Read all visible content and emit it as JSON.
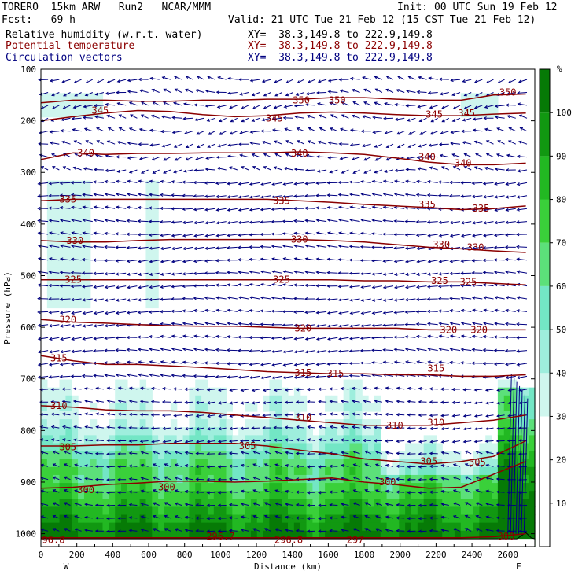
{
  "header": {
    "model": "TORERO  15km ARW   Run2   NCAR/MMM",
    "init": "Init: 00 UTC Sun 19 Feb 12",
    "fcst": "Fcst:   69 h",
    "valid": "Valid: 21 UTC Tue 21 Feb 12 (15 CST Tue 21 Feb 12)"
  },
  "fields": [
    {
      "name": "Relative humidity (w.r.t. water)",
      "xy": "XY=  38.3,149.8 to 222.9,149.8",
      "color": "#000000"
    },
    {
      "name": "Potential temperature",
      "xy": "XY=  38.3,149.8 to 222.9,149.8",
      "color": "#8b0000"
    },
    {
      "name": "Circulation vectors",
      "xy": "XY=  38.3,149.8 to 222.9,149.8",
      "color": "#000080"
    }
  ],
  "chart_data": {
    "type": "heatmap",
    "xlabel": "Distance (km)",
    "ylabel": "Pressure (hPa)",
    "xlim": [
      0,
      2750
    ],
    "ylim": [
      1025,
      100
    ],
    "x_ticks": [
      "0",
      "200",
      "400",
      "600",
      "800",
      "1000",
      "1200",
      "1400",
      "1600",
      "1800",
      "2000",
      "2200",
      "2400",
      "2600"
    ],
    "y_ticks": [
      "100",
      "200",
      "300",
      "400",
      "500",
      "600",
      "700",
      "800",
      "900",
      "1000"
    ],
    "x_end_labels": {
      "left": "W",
      "right": "E"
    },
    "colorbar": {
      "unit": "%",
      "labels": [
        "10",
        "20",
        "30",
        "40",
        "50",
        "60",
        "70",
        "80",
        "90",
        "100"
      ],
      "levels": [
        0,
        10,
        20,
        30,
        40,
        50,
        60,
        70,
        80,
        90,
        100,
        110
      ],
      "colors": [
        "#ffffff",
        "#ffffff",
        "#ffffff",
        "#cff6ee",
        "#9eeedd",
        "#73e6c5",
        "#5ce07a",
        "#3ad03a",
        "#22b822",
        "#119811",
        "#067a06"
      ]
    },
    "theta_contours": [
      {
        "level": 350,
        "p": [
          165,
          160,
          160,
          162,
          162,
          160,
          160,
          158,
          158,
          155,
          155,
          158,
          160,
          160,
          150,
          148
        ]
      },
      {
        "level": 345,
        "p": [
          200,
          192,
          185,
          180,
          182,
          188,
          192,
          190,
          185,
          183,
          185,
          188,
          190,
          190,
          187,
          185
        ]
      },
      {
        "level": 340,
        "p": [
          275,
          262,
          265,
          263,
          263,
          262,
          262,
          262,
          260,
          262,
          265,
          272,
          280,
          285,
          285,
          282
        ]
      },
      {
        "level": 335,
        "p": [
          355,
          352,
          352,
          352,
          352,
          352,
          352,
          352,
          355,
          358,
          362,
          365,
          368,
          372,
          370,
          365
        ]
      },
      {
        "level": 330,
        "p": [
          432,
          435,
          435,
          432,
          430,
          430,
          430,
          430,
          430,
          432,
          435,
          440,
          445,
          448,
          452,
          455
        ]
      },
      {
        "level": 325,
        "p": [
          508,
          508,
          508,
          508,
          508,
          508,
          508,
          508,
          508,
          508,
          510,
          510,
          512,
          512,
          515,
          518
        ]
      },
      {
        "level": 320,
        "p": [
          585,
          590,
          592,
          595,
          597,
          598,
          598,
          600,
          602,
          602,
          602,
          602,
          605,
          605,
          605,
          605
        ]
      },
      {
        "level": 315,
        "p": [
          655,
          665,
          672,
          672,
          675,
          678,
          682,
          686,
          688,
          690,
          690,
          692,
          692,
          695,
          695,
          692
        ]
      },
      {
        "level": 310,
        "p": [
          752,
          755,
          760,
          762,
          762,
          765,
          770,
          775,
          780,
          785,
          790,
          790,
          790,
          785,
          780,
          770
        ]
      },
      {
        "level": 305,
        "p": [
          830,
          830,
          828,
          828,
          825,
          825,
          825,
          830,
          838,
          845,
          855,
          860,
          865,
          860,
          850,
          820
        ]
      },
      {
        "level": 300,
        "p": [
          912,
          910,
          905,
          902,
          898,
          898,
          900,
          898,
          895,
          892,
          900,
          905,
          912,
          910,
          885,
          860
        ]
      },
      {
        "level": 297,
        "p": [
          1008,
          1008,
          1008,
          1008,
          1008,
          1008,
          1008,
          1008,
          1008,
          1008,
          1008,
          1008,
          1008,
          1008,
          1006,
          1000
        ]
      }
    ],
    "theta_x": [
      0,
      180,
      360,
      540,
      720,
      900,
      1080,
      1260,
      1440,
      1620,
      1800,
      1980,
      2160,
      2340,
      2520,
      2700
    ],
    "contour_labels": [
      {
        "t": "350",
        "x": 1450,
        "p": 160
      },
      {
        "t": "350",
        "x": 1650,
        "p": 160
      },
      {
        "t": "350",
        "x": 2600,
        "p": 145
      },
      {
        "t": "345",
        "x": 330,
        "p": 180
      },
      {
        "t": "345",
        "x": 1300,
        "p": 195
      },
      {
        "t": "345",
        "x": 2190,
        "p": 188
      },
      {
        "t": "345",
        "x": 2370,
        "p": 185
      },
      {
        "t": "340",
        "x": 250,
        "p": 262
      },
      {
        "t": "340",
        "x": 1440,
        "p": 263
      },
      {
        "t": "340",
        "x": 2150,
        "p": 270
      },
      {
        "t": "340",
        "x": 2350,
        "p": 282
      },
      {
        "t": "335",
        "x": 150,
        "p": 352
      },
      {
        "t": "335",
        "x": 1340,
        "p": 355
      },
      {
        "t": "335",
        "x": 2150,
        "p": 362
      },
      {
        "t": "335",
        "x": 2450,
        "p": 370
      },
      {
        "t": "330",
        "x": 190,
        "p": 432
      },
      {
        "t": "330",
        "x": 1440,
        "p": 430
      },
      {
        "t": "330",
        "x": 2230,
        "p": 440
      },
      {
        "t": "330",
        "x": 2420,
        "p": 445
      },
      {
        "t": "325",
        "x": 180,
        "p": 508
      },
      {
        "t": "325",
        "x": 1340,
        "p": 508
      },
      {
        "t": "325",
        "x": 2220,
        "p": 510
      },
      {
        "t": "325",
        "x": 2380,
        "p": 512
      },
      {
        "t": "320",
        "x": 150,
        "p": 585
      },
      {
        "t": "320",
        "x": 1460,
        "p": 602
      },
      {
        "t": "320",
        "x": 2270,
        "p": 605
      },
      {
        "t": "320",
        "x": 2440,
        "p": 605
      },
      {
        "t": "315",
        "x": 100,
        "p": 660
      },
      {
        "t": "315",
        "x": 1460,
        "p": 688
      },
      {
        "t": "315",
        "x": 1640,
        "p": 690
      },
      {
        "t": "315",
        "x": 2200,
        "p": 680
      },
      {
        "t": "310",
        "x": 100,
        "p": 752
      },
      {
        "t": "310",
        "x": 1460,
        "p": 775
      },
      {
        "t": "310",
        "x": 1970,
        "p": 790
      },
      {
        "t": "310",
        "x": 2200,
        "p": 785
      },
      {
        "t": "305",
        "x": 150,
        "p": 832
      },
      {
        "t": "305",
        "x": 1150,
        "p": 830
      },
      {
        "t": "305",
        "x": 2160,
        "p": 860
      },
      {
        "t": "305",
        "x": 2430,
        "p": 862
      },
      {
        "t": "300",
        "x": 250,
        "p": 915
      },
      {
        "t": "300",
        "x": 700,
        "p": 910
      },
      {
        "t": "300",
        "x": 1930,
        "p": 900
      },
      {
        "t": "96.8",
        "x": 70,
        "p": 1012
      },
      {
        "t": "296.7",
        "x": 1000,
        "p": 1005
      },
      {
        "t": "296.8",
        "x": 1380,
        "p": 1012
      },
      {
        "t": "297",
        "x": 1750,
        "p": 1012
      },
      {
        "t": "300",
        "x": 2590,
        "p": 1005
      }
    ]
  }
}
